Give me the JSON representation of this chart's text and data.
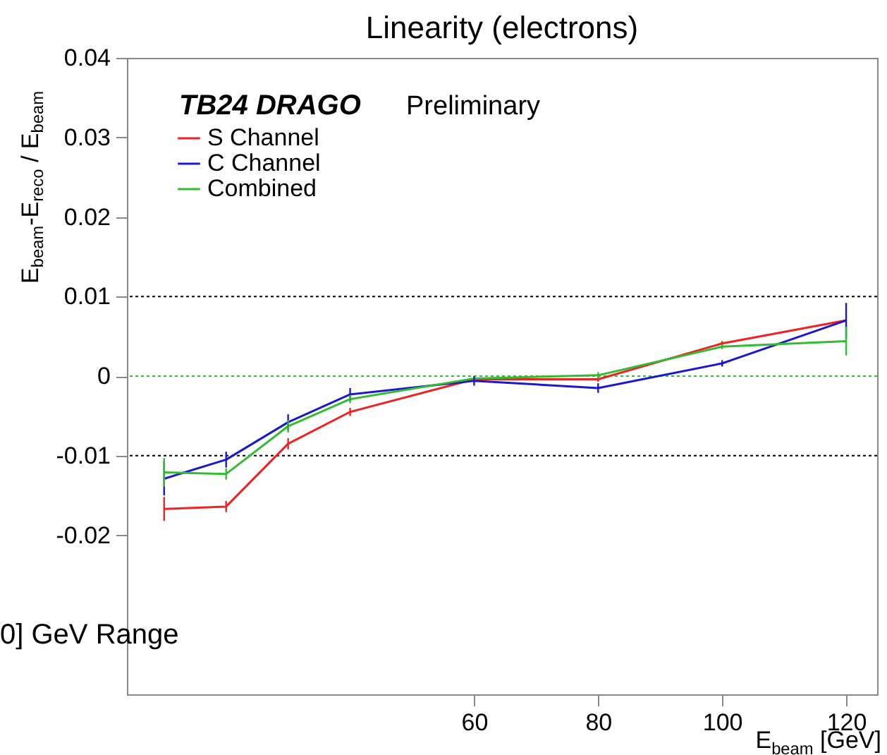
{
  "chart_data": {
    "type": "line",
    "title": "Linearity (electrons)",
    "xlabel": "E$_{beam}$ [GeV]",
    "ylabel": "E$_{beam}$-E$_{reco}$ / E$_{beam}$",
    "x": [
      10,
      20,
      30,
      40,
      60,
      80,
      100,
      120
    ],
    "series": [
      {
        "name": "S Channel",
        "color": "#ee2222",
        "values": [
          -0.0167,
          -0.0164,
          -0.0085,
          -0.0045,
          -0.0004,
          -0.0004,
          0.0041,
          0.007
        ],
        "errors": [
          0.0015,
          0.0007,
          0.0007,
          0.0005,
          null,
          0.0003,
          0.0003,
          null
        ]
      },
      {
        "name": "C Channel",
        "color": "#1a1acc",
        "values": [
          -0.0129,
          -0.0105,
          -0.0058,
          -0.0023,
          -0.0006,
          -0.0015,
          0.0016,
          0.007
        ],
        "errors": [
          0.0021,
          0.001,
          0.001,
          0.0008,
          0.0006,
          0.0006,
          0.0004,
          0.0022
        ]
      },
      {
        "name": "Combined",
        "color": "#33bb33",
        "values": [
          -0.0121,
          -0.0123,
          -0.0063,
          -0.0029,
          -0.0003,
          0.0001,
          0.0037,
          0.0044
        ],
        "errors": [
          0.0018,
          0.0007,
          0.0008,
          0.0005,
          null,
          0.0004,
          0.0003,
          0.0018
        ]
      }
    ],
    "xlim": [
      4,
      125
    ],
    "xticks": [
      60,
      80,
      100,
      120
    ],
    "ylim": [
      -0.04,
      0.04
    ],
    "yticks": [
      -0.02,
      -0.01,
      0,
      0.01,
      0.02,
      0.03,
      0.04
    ],
    "ref_lines": [
      {
        "axis": "y",
        "value": 0.01,
        "color": "#000000",
        "line_style": "dotted"
      },
      {
        "axis": "y",
        "value": 0,
        "color": "#33bb33",
        "line_style": "dotted"
      },
      {
        "axis": "y",
        "value": -0.01,
        "color": "#000000",
        "line_style": "dotted"
      }
    ],
    "annotations": [
      "TB24 DRAGO",
      "Preliminary",
      "0] GeV Range"
    ],
    "legend": "top left"
  }
}
